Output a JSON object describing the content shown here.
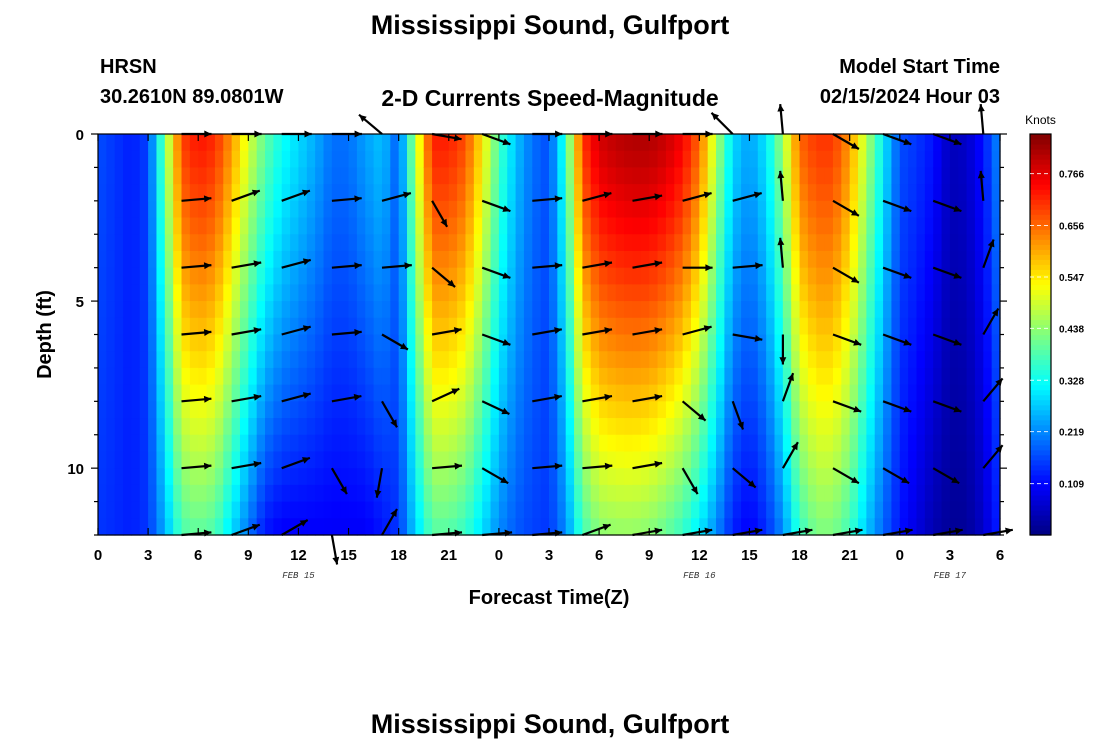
{
  "header": {
    "title": "Mississippi Sound, Gulfport",
    "station": "HRSN",
    "coords": "30.2610N  89.0801W",
    "subtitle": "2-D Currents Speed-Magnitude",
    "start_label": "Model Start Time",
    "start_value": "02/15/2024 Hour 03"
  },
  "footer": {
    "title": "Mississippi Sound, Gulfport"
  },
  "chart_data": {
    "type": "heatmap",
    "title": "2-D Currents Speed-Magnitude",
    "xlabel": "Forecast Time(Z)",
    "ylabel": "Depth (ft)",
    "x_range_hours": [
      0,
      54
    ],
    "y_range_ft": [
      0,
      12
    ],
    "x_tick_hours": [
      0,
      3,
      6,
      9,
      12,
      15,
      18,
      21,
      24,
      27,
      30,
      33,
      36,
      39,
      42,
      45,
      48,
      51,
      54
    ],
    "x_tick_labels": [
      "0",
      "3",
      "6",
      "9",
      "12",
      "15",
      "18",
      "21",
      "0",
      "3",
      "6",
      "9",
      "12",
      "15",
      "18",
      "21",
      "0",
      "3",
      "6"
    ],
    "y_ticks": [
      0,
      5,
      10
    ],
    "y_tick_labels": [
      "0",
      "5",
      "10"
    ],
    "date_labels": [
      {
        "text": "FEB 15",
        "hour": 12
      },
      {
        "text": "FEB 16",
        "hour": 36
      },
      {
        "text": "FEB 17",
        "hour": 51
      }
    ],
    "colorbar": {
      "unit": "Knots",
      "min": 0.0,
      "max": 0.85,
      "tick_values": [
        0.109,
        0.219,
        0.328,
        0.438,
        0.547,
        0.656,
        0.766
      ],
      "tick_labels": [
        "0.109",
        "0.219",
        "0.328",
        "0.438",
        "0.547",
        "0.656",
        "0.766"
      ],
      "colormap": "jet"
    },
    "speed_profile": {
      "hours": [
        0,
        1,
        2,
        3,
        4,
        5,
        6,
        7,
        8,
        9,
        10,
        11,
        12,
        13,
        14,
        15,
        16,
        17,
        18,
        19,
        20,
        21,
        22,
        23,
        24,
        25,
        26,
        27,
        28,
        29,
        30,
        31,
        32,
        33,
        34,
        35,
        36,
        37,
        38,
        39,
        40,
        41,
        42,
        43,
        44,
        45,
        46,
        47,
        48,
        49,
        50,
        51,
        52,
        53,
        54
      ],
      "surface": [
        0.17,
        0.15,
        0.13,
        0.16,
        0.42,
        0.69,
        0.73,
        0.71,
        0.62,
        0.5,
        0.4,
        0.33,
        0.29,
        0.25,
        0.2,
        0.2,
        0.24,
        0.27,
        0.18,
        0.47,
        0.72,
        0.72,
        0.68,
        0.55,
        0.38,
        0.27,
        0.2,
        0.17,
        0.36,
        0.7,
        0.78,
        0.8,
        0.81,
        0.81,
        0.79,
        0.75,
        0.66,
        0.47,
        0.29,
        0.24,
        0.3,
        0.45,
        0.66,
        0.7,
        0.7,
        0.62,
        0.47,
        0.31,
        0.17,
        0.15,
        0.12,
        0.05,
        0.06,
        0.12,
        0.23
      ],
      "bottom": [
        0.15,
        0.14,
        0.13,
        0.15,
        0.25,
        0.38,
        0.4,
        0.38,
        0.29,
        0.2,
        0.12,
        0.1,
        0.1,
        0.1,
        0.1,
        0.1,
        0.1,
        0.12,
        0.15,
        0.28,
        0.39,
        0.39,
        0.36,
        0.29,
        0.22,
        0.18,
        0.16,
        0.15,
        0.22,
        0.37,
        0.43,
        0.44,
        0.44,
        0.43,
        0.4,
        0.36,
        0.3,
        0.22,
        0.13,
        0.1,
        0.14,
        0.22,
        0.36,
        0.42,
        0.42,
        0.37,
        0.27,
        0.19,
        0.12,
        0.08,
        0.04,
        0.02,
        0.02,
        0.06,
        0.14
      ]
    },
    "vector_hours": [
      5,
      8,
      11,
      14,
      17,
      20,
      23,
      26,
      29,
      32,
      35,
      38,
      41,
      44,
      47,
      50,
      53
    ],
    "vector_depths_ft": [
      0,
      2,
      4,
      6,
      8,
      10,
      12
    ],
    "vector_angles_deg": [
      [
        0,
        0,
        0,
        0,
        140,
        -10,
        -20,
        0,
        0,
        0,
        0,
        135,
        95,
        -30,
        -20,
        -20,
        95
      ],
      [
        5,
        20,
        20,
        5,
        15,
        -60,
        -20,
        5,
        15,
        10,
        15,
        15,
        95,
        -30,
        -20,
        -20,
        95
      ],
      [
        5,
        10,
        15,
        5,
        5,
        -40,
        -20,
        5,
        10,
        10,
        0,
        5,
        95,
        -30,
        -20,
        -20,
        70
      ],
      [
        5,
        10,
        15,
        5,
        -30,
        10,
        -20,
        10,
        10,
        10,
        15,
        -10,
        -90,
        -20,
        -20,
        -20,
        60
      ],
      [
        5,
        10,
        15,
        10,
        -60,
        25,
        -25,
        10,
        10,
        10,
        -40,
        -70,
        70,
        -20,
        -20,
        -20,
        50
      ],
      [
        5,
        10,
        20,
        -60,
        -100,
        5,
        -30,
        5,
        5,
        10,
        -60,
        -40,
        60,
        -30,
        -30,
        -30,
        50
      ],
      [
        5,
        20,
        30,
        -80,
        60,
        5,
        5,
        5,
        20,
        10,
        10,
        10,
        10,
        10,
        10,
        10,
        10
      ]
    ]
  }
}
